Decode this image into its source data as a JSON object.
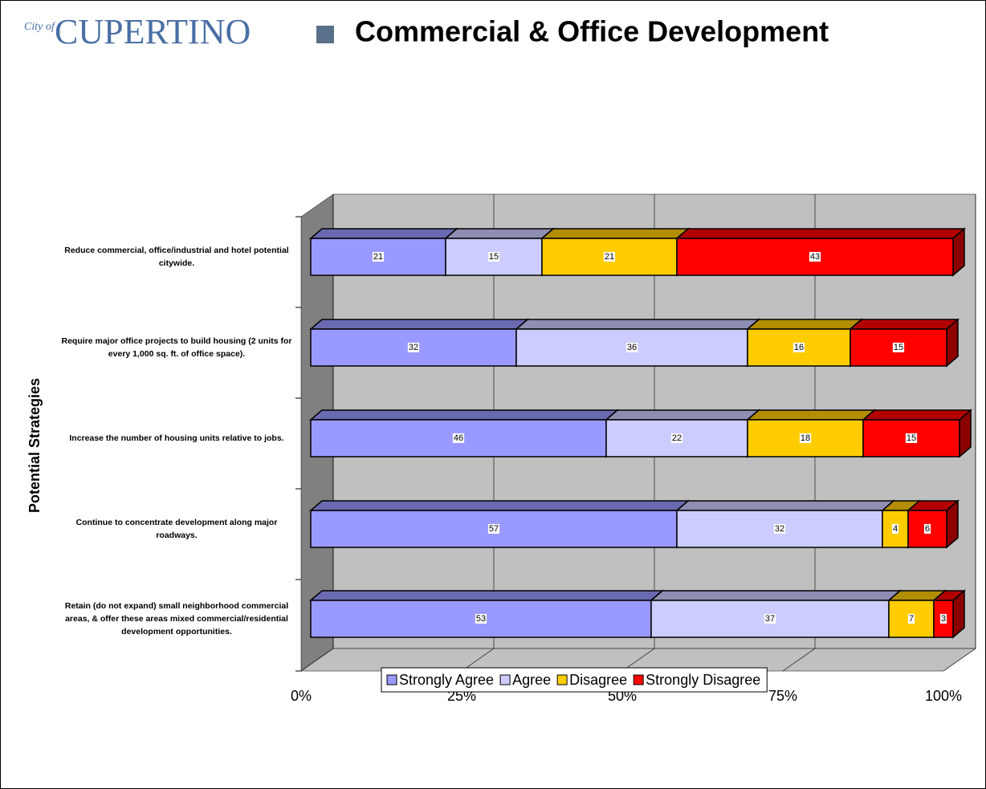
{
  "chart_data": {
    "type": "stacked_barh",
    "logo": {
      "prefix": "City of",
      "name": "CUPERTINO"
    },
    "title": "Commercial & Office Development",
    "y_label": "Potential Strategies",
    "categories": [
      "Reduce commercial, office/industrial and hotel potential citywide.",
      "Require major office projects to build housing (2 units for every 1,000 sq. ft. of office space).",
      "Increase the number of housing units relative to jobs.",
      "Continue to concentrate development along major roadways.",
      "Retain (do not expand) small neighborhood commercial areas, & offer these areas mixed commercial/residential development opportunities."
    ],
    "series": [
      {
        "name": "Strongly Agree",
        "color": "#9999ff",
        "values": [
          21,
          32,
          46,
          57,
          53
        ]
      },
      {
        "name": "Agree",
        "color": "#ccccff",
        "values": [
          15,
          36,
          22,
          32,
          37
        ]
      },
      {
        "name": "Disagree",
        "color": "#ffcc00",
        "values": [
          21,
          16,
          18,
          4,
          7
        ]
      },
      {
        "name": "Strongly Disagree",
        "color": "#ff0000",
        "values": [
          43,
          15,
          15,
          6,
          3
        ]
      }
    ],
    "xlim": [
      0,
      100
    ],
    "xticks": [
      {
        "value": 0,
        "label": "0%"
      },
      {
        "value": 25,
        "label": "25%"
      },
      {
        "value": 50,
        "label": "50%"
      },
      {
        "value": 75,
        "label": "75%"
      },
      {
        "value": 100,
        "label": "100%"
      }
    ],
    "grid": true,
    "legend": "bottom"
  }
}
